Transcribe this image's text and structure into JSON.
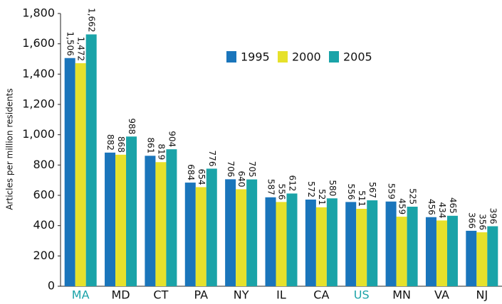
{
  "chart_data": {
    "type": "bar",
    "y_axis_label": "Articles per million residents",
    "categories": [
      "MA",
      "MD",
      "CT",
      "PA",
      "NY",
      "IL",
      "CA",
      "US",
      "MN",
      "VA",
      "NJ"
    ],
    "category_label_colors": [
      "#1aa3a8",
      "#111111",
      "#111111",
      "#111111",
      "#111111",
      "#111111",
      "#111111",
      "#1aa3a8",
      "#111111",
      "#111111",
      "#111111"
    ],
    "series": [
      {
        "name": "1995",
        "color": "#1a75bb",
        "values": [
          1506,
          882,
          861,
          684,
          706,
          587,
          572,
          556,
          559,
          456,
          366
        ],
        "value_labels": [
          "1,506",
          "882",
          "861",
          "684",
          "706",
          "587",
          "572",
          "556",
          "559",
          "456",
          "366"
        ]
      },
      {
        "name": "2000",
        "color": "#e6e12b",
        "values": [
          1472,
          868,
          819,
          654,
          640,
          556,
          521,
          511,
          459,
          434,
          356
        ],
        "value_labels": [
          "1,472",
          "868",
          "819",
          "654",
          "640",
          "556",
          "521",
          "511",
          "459",
          "434",
          "356"
        ]
      },
      {
        "name": "2005",
        "color": "#1aa3a8",
        "values": [
          1662,
          988,
          904,
          776,
          705,
          612,
          580,
          567,
          525,
          465,
          396
        ],
        "value_labels": [
          "1,662",
          "988",
          "904",
          "776",
          "705",
          "612",
          "580",
          "567",
          "525",
          "465",
          "396"
        ]
      }
    ],
    "ylim": [
      0,
      1800
    ],
    "yticks": [
      0,
      200,
      400,
      600,
      800,
      {
        "value": 1000,
        "label": "1,000"
      },
      {
        "value": 1200,
        "label": "1,200"
      },
      {
        "value": 1400,
        "label": "1,400"
      },
      {
        "value": 1600,
        "label": "1,600"
      },
      {
        "value": 1800,
        "label": "1,800"
      }
    ],
    "grid": false,
    "legend": "top"
  }
}
